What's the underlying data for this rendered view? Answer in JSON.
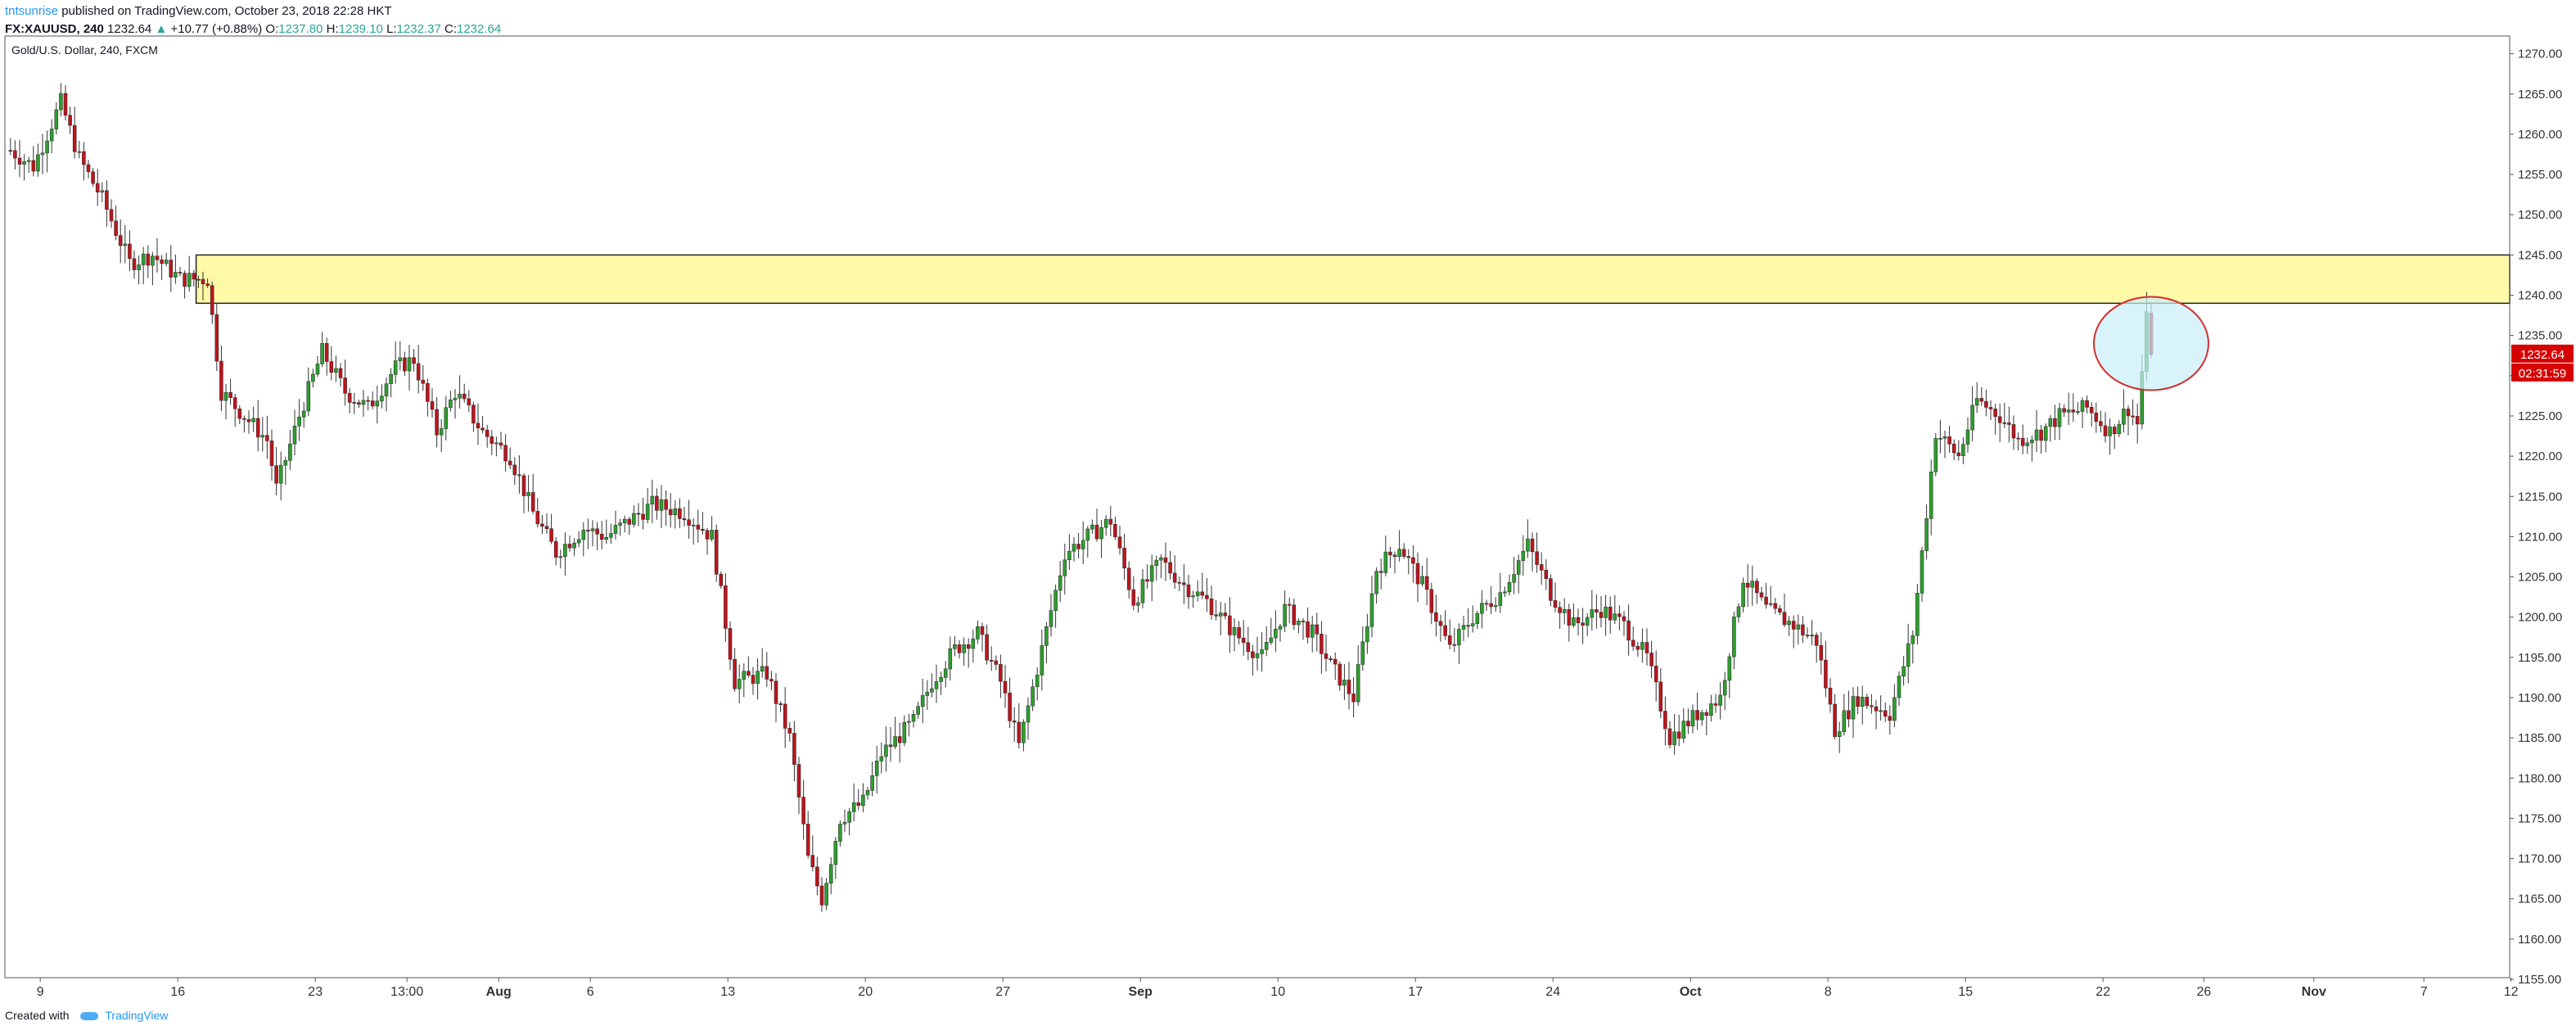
{
  "header": {
    "author": "tntsunrise",
    "published_text": "published on TradingView.com, October 23, 2018 22:28 HKT",
    "symbol": "FX:XAUUSD, 240",
    "price": "1232.64",
    "change": "+10.77 (+0.88%)",
    "open_label": "O:",
    "open": "1237.80",
    "high_label": "H:",
    "high": "1239.10",
    "low_label": "L:",
    "low": "1232.37",
    "close_label": "C:",
    "close": "1232.64"
  },
  "footer": {
    "created_with": "Created with",
    "brand": "TradingView"
  },
  "colors": {
    "up": "#26a69a",
    "candle_up": "#2ca02c",
    "candle_down": "#c0131c",
    "zone_fill": "#fff9a8",
    "zone_border": "#222222",
    "circle_fill": "#c8f0f8",
    "circle_stroke": "#d32f2f",
    "price_tag": "#d50000"
  },
  "chart_data": {
    "type": "candlestick",
    "title": "Gold/U.S. Dollar, 240, FXCM",
    "ylim": [
      1155,
      1272
    ],
    "y_ticks": [
      "1155.00",
      "1160.00",
      "1165.00",
      "1170.00",
      "1175.00",
      "1180.00",
      "1185.00",
      "1190.00",
      "1195.00",
      "1200.00",
      "1205.00",
      "1210.00",
      "1215.00",
      "1220.00",
      "1225.00",
      "1230.00",
      "1235.00",
      "1240.00",
      "1245.00",
      "1250.00",
      "1255.00",
      "1260.00",
      "1265.00",
      "1270.00"
    ],
    "x_ticks": [
      {
        "label": "9",
        "bar": 7,
        "bold": false
      },
      {
        "label": "16",
        "bar": 37,
        "bold": false
      },
      {
        "label": "23",
        "bar": 67,
        "bold": false
      },
      {
        "label": "13:00",
        "bar": 87,
        "bold": false
      },
      {
        "label": "Aug",
        "bar": 107,
        "bold": true
      },
      {
        "label": "6",
        "bar": 127,
        "bold": false
      },
      {
        "label": "13",
        "bar": 157,
        "bold": false
      },
      {
        "label": "20",
        "bar": 187,
        "bold": false
      },
      {
        "label": "27",
        "bar": 217,
        "bold": false
      },
      {
        "label": "Sep",
        "bar": 247,
        "bold": true
      },
      {
        "label": "10",
        "bar": 277,
        "bold": false
      },
      {
        "label": "17",
        "bar": 307,
        "bold": false
      },
      {
        "label": "24",
        "bar": 337,
        "bold": false
      },
      {
        "label": "Oct",
        "bar": 367,
        "bold": true
      },
      {
        "label": "8",
        "bar": 397,
        "bold": false
      },
      {
        "label": "15",
        "bar": 427,
        "bold": false
      },
      {
        "label": "22",
        "bar": 457,
        "bold": false
      },
      {
        "label": "26",
        "bar": 479,
        "bold": false
      },
      {
        "label": "Nov",
        "bar": 503,
        "bold": true
      },
      {
        "label": "7",
        "bar": 527,
        "bold": false
      },
      {
        "label": "12",
        "bar": 546,
        "bold": false
      }
    ],
    "close_path": [
      [
        0,
        1258
      ],
      [
        5,
        1256
      ],
      [
        11,
        1264
      ],
      [
        15,
        1257
      ],
      [
        20,
        1252
      ],
      [
        26,
        1244
      ],
      [
        31,
        1245
      ],
      [
        37,
        1242
      ],
      [
        43,
        1242
      ],
      [
        46,
        1228
      ],
      [
        51,
        1225
      ],
      [
        56,
        1222
      ],
      [
        58,
        1216
      ],
      [
        63,
        1225
      ],
      [
        68,
        1233
      ],
      [
        73,
        1228
      ],
      [
        78,
        1226
      ],
      [
        84,
        1231
      ],
      [
        88,
        1232
      ],
      [
        93,
        1223
      ],
      [
        97,
        1228
      ],
      [
        103,
        1223
      ],
      [
        109,
        1220
      ],
      [
        114,
        1213
      ],
      [
        119,
        1208
      ],
      [
        125,
        1211
      ],
      [
        130,
        1210
      ],
      [
        135,
        1212
      ],
      [
        140,
        1214
      ],
      [
        147,
        1213
      ],
      [
        153,
        1210
      ],
      [
        158,
        1192
      ],
      [
        165,
        1193
      ],
      [
        170,
        1185
      ],
      [
        174,
        1170
      ],
      [
        177,
        1165
      ],
      [
        181,
        1175
      ],
      [
        186,
        1177
      ],
      [
        190,
        1183
      ],
      [
        197,
        1187
      ],
      [
        201,
        1192
      ],
      [
        206,
        1196
      ],
      [
        211,
        1198
      ],
      [
        216,
        1192
      ],
      [
        220,
        1184
      ],
      [
        225,
        1196
      ],
      [
        230,
        1208
      ],
      [
        235,
        1210
      ],
      [
        240,
        1212
      ],
      [
        245,
        1202
      ],
      [
        251,
        1207
      ],
      [
        256,
        1204
      ],
      [
        261,
        1202
      ],
      [
        267,
        1198
      ],
      [
        273,
        1195
      ],
      [
        278,
        1201
      ],
      [
        284,
        1198
      ],
      [
        288,
        1194
      ],
      [
        293,
        1190
      ],
      [
        298,
        1206
      ],
      [
        303,
        1209
      ],
      [
        308,
        1204
      ],
      [
        314,
        1196
      ],
      [
        319,
        1200
      ],
      [
        325,
        1203
      ],
      [
        331,
        1209
      ],
      [
        336,
        1203
      ],
      [
        341,
        1199
      ],
      [
        347,
        1201
      ],
      [
        352,
        1199
      ],
      [
        357,
        1195
      ],
      [
        362,
        1185
      ],
      [
        368,
        1188
      ],
      [
        373,
        1190
      ],
      [
        378,
        1205
      ],
      [
        383,
        1201
      ],
      [
        389,
        1199
      ],
      [
        394,
        1197
      ],
      [
        398,
        1186
      ],
      [
        403,
        1190
      ],
      [
        410,
        1188
      ],
      [
        415,
        1198
      ],
      [
        420,
        1223
      ],
      [
        425,
        1220
      ],
      [
        429,
        1227
      ],
      [
        434,
        1225
      ],
      [
        438,
        1222
      ],
      [
        443,
        1223
      ],
      [
        447,
        1225
      ],
      [
        453,
        1226
      ],
      [
        458,
        1223
      ],
      [
        462,
        1226
      ],
      [
        464,
        1224
      ],
      [
        466,
        1237
      ],
      [
        467,
        1232.64
      ]
    ],
    "last_price": "1232.64",
    "countdown": "02:31:59",
    "resistance_zone": {
      "from_bar": 41,
      "top": 1245,
      "bottom": 1239
    },
    "highlight_circle": {
      "bar": 467,
      "price": 1234
    }
  }
}
